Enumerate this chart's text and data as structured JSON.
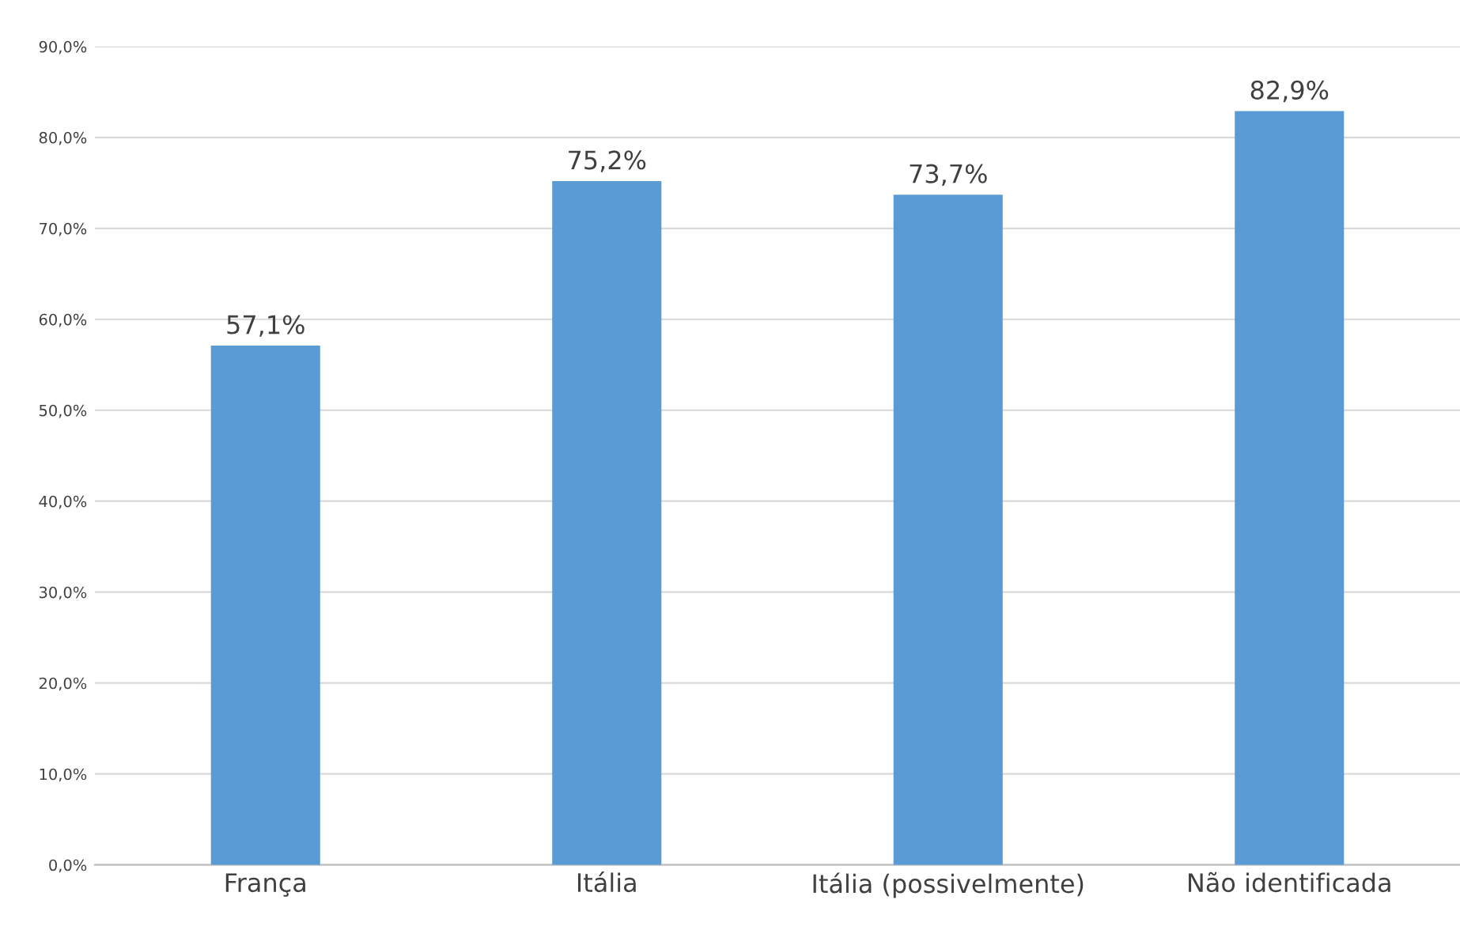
{
  "chart_data": {
    "type": "bar",
    "categories": [
      "França",
      "Itália",
      "Itália (possivelmente)",
      "Não identificada"
    ],
    "values": [
      57.1,
      75.2,
      73.7,
      82.9
    ],
    "value_labels": [
      "57,1%",
      "75,2%",
      "73,7%",
      "82,9%"
    ],
    "color": "#5b9bd5",
    "ylim": [
      0,
      90
    ],
    "yticks": [
      {
        "value": 0,
        "label": "0,0%"
      },
      {
        "value": 10,
        "label": "10,0%"
      },
      {
        "value": 20,
        "label": "20,0%"
      },
      {
        "value": 30,
        "label": "30,0%"
      },
      {
        "value": 40,
        "label": "40,0%"
      },
      {
        "value": 50,
        "label": "50,0%"
      },
      {
        "value": 60,
        "label": "60,0%"
      },
      {
        "value": 70,
        "label": "70,0%"
      },
      {
        "value": 80,
        "label": "80,0%"
      },
      {
        "value": 90,
        "label": "90,0%"
      }
    ],
    "grid": "y",
    "legend": false
  }
}
